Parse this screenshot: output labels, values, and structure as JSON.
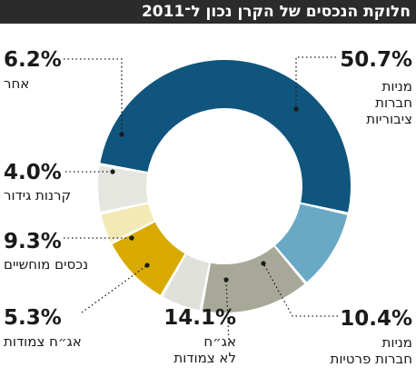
{
  "chart_data": {
    "type": "pie",
    "donut": true,
    "title": "חלוקת הנכסים של הקרן נכון ל־2011",
    "slices": [
      {
        "key": "public",
        "value_text": "50.7%",
        "value": 50.7,
        "label_lines": [
          "מניות",
          "חברות",
          "ציבוריות"
        ],
        "color": "#0f557d"
      },
      {
        "key": "private",
        "value_text": "10.4%",
        "value": 10.4,
        "label_lines": [
          "מניות",
          "חברות פרטיות"
        ],
        "color": "#69a9c6"
      },
      {
        "key": "nonlinked",
        "value_text": "14.1%",
        "value": 14.1,
        "label_lines": [
          "אג״ח",
          "לא צמודות"
        ],
        "color": "#a8a898"
      },
      {
        "key": "linked",
        "value_text": "5.3%",
        "value": 5.3,
        "label_lines": [
          "אג״ח צמודות"
        ],
        "color": "#e1e1dc"
      },
      {
        "key": "real",
        "value_text": "9.3%",
        "value": 9.3,
        "label_lines": [
          "נכסים מוחשיים"
        ],
        "color": "#d8aa00"
      },
      {
        "key": "hedge",
        "value_text": "4.0%",
        "value": 4.0,
        "label_lines": [
          "קרנות גידור"
        ],
        "color": "#f3e9b4"
      },
      {
        "key": "other",
        "value_text": "6.2%",
        "value": 6.2,
        "label_lines": [
          "אחר"
        ],
        "color": "#e6e6e0"
      }
    ]
  }
}
